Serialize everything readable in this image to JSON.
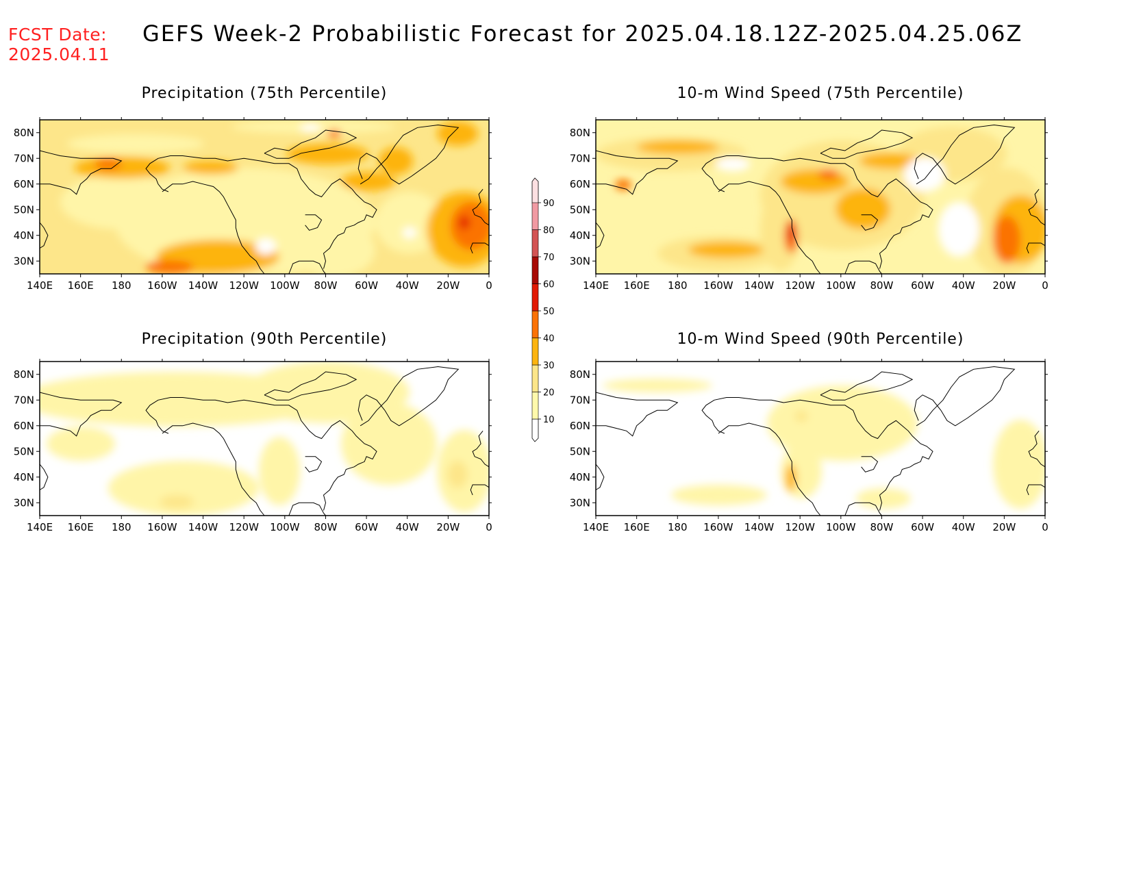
{
  "header": {
    "fcst_label": "FCST Date:",
    "fcst_date": "2025.04.11",
    "title": "GEFS Week-2 Probabilistic Forecast for 2025.04.18.12Z-2025.04.25.06Z"
  },
  "panels": [
    {
      "id": "precip75",
      "title": "Precipitation (75th Percentile)",
      "field": "precipitation",
      "percentile": 75
    },
    {
      "id": "wind75",
      "title": "10-m Wind Speed (75th Percentile)",
      "field": "wind",
      "percentile": 75
    },
    {
      "id": "precip90",
      "title": "Precipitation (90th Percentile)",
      "field": "precipitation",
      "percentile": 90
    },
    {
      "id": "wind90",
      "title": "10-m Wind Speed (90th Percentile)",
      "field": "wind",
      "percentile": 90
    }
  ],
  "axes": {
    "lon_labels": [
      "140E",
      "160E",
      "180",
      "160W",
      "140W",
      "120W",
      "100W",
      "80W",
      "60W",
      "40W",
      "20W",
      "0"
    ],
    "lat_labels": [
      "80N",
      "70N",
      "60N",
      "50N",
      "40N",
      "30N"
    ],
    "lon_range": [
      140,
      360
    ],
    "lat_range": [
      25,
      85
    ]
  },
  "colorbar": {
    "levels": [
      "10",
      "20",
      "30",
      "40",
      "50",
      "60",
      "70",
      "80",
      "90"
    ],
    "colors": [
      "#fff9ac",
      "#fde68a",
      "#fdb40f",
      "#fb7306",
      "#e21a05",
      "#a80a05",
      "#d35454",
      "#f19aa3",
      "#fde0e2"
    ]
  }
}
